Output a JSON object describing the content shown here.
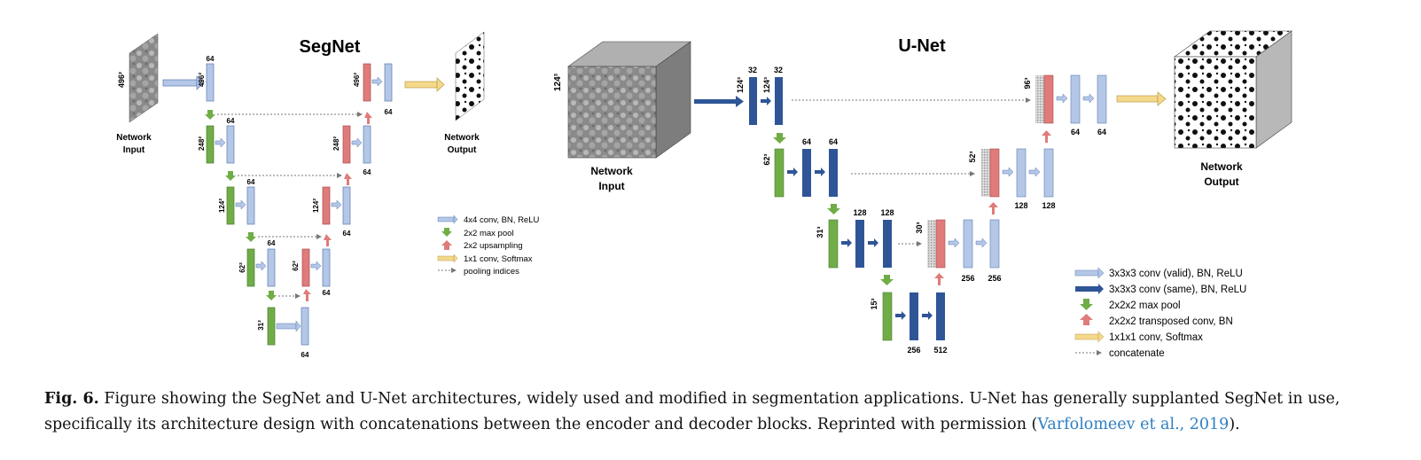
{
  "segnet": {
    "title": "SegNet",
    "input_label_1": "Network",
    "input_label_2": "Input",
    "output_label_1": "Network",
    "output_label_2": "Output",
    "dims": {
      "l1": "496²",
      "l2": "248²",
      "l3": "124²",
      "l4": "62²",
      "l5": "31²"
    },
    "channels": "64",
    "legend": [
      "4x4 conv, BN, ReLU",
      "2x2 max pool",
      "2x2 upsampling",
      "1x1 conv, Softmax",
      "pooling indices"
    ]
  },
  "unet": {
    "title": "U-Net",
    "input_dim": "124³",
    "input_label_1": "Network",
    "input_label_2": "Input",
    "output_label_1": "Network",
    "output_label_2": "Output",
    "enc_dims": {
      "l1": "124³",
      "l2": "62³",
      "l3": "31³",
      "l4": "15³"
    },
    "dec_dims": {
      "l1": "96³",
      "l2": "52³",
      "l3": "30³"
    },
    "channels": {
      "enc1": [
        "32",
        "32"
      ],
      "enc2": [
        "64",
        "64"
      ],
      "enc3": [
        "128",
        "128"
      ],
      "bottleneck": [
        "256",
        "512"
      ],
      "dec3": [
        "256",
        "256"
      ],
      "dec2": [
        "128",
        "128"
      ],
      "dec1": [
        "64",
        "64"
      ]
    },
    "legend": [
      "3x3x3 conv (valid),  BN, ReLU",
      "3x3x3 conv (same), BN, ReLU",
      "2x2x2 max pool",
      "2x2x2 transposed conv, BN",
      "1x1x1 conv, Softmax",
      "concatenate"
    ]
  },
  "colors": {
    "light_conv": "#b4c7e7",
    "dark_conv": "#2f5597",
    "pool": "#70ad47",
    "upsample": "#e07b7b",
    "softmax": "#f5d98b"
  },
  "caption": {
    "label": "Fig. 6.",
    "text": "Figure showing the SegNet and U-Net architectures, widely used and modified in segmentation applications. U-Net has generally supplanted SegNet in use, specifically its architecture design with concatenations between the encoder and decoder blocks. Reprinted with permission (",
    "citation": "Varfolomeev et al., 2019",
    "end": ")."
  }
}
